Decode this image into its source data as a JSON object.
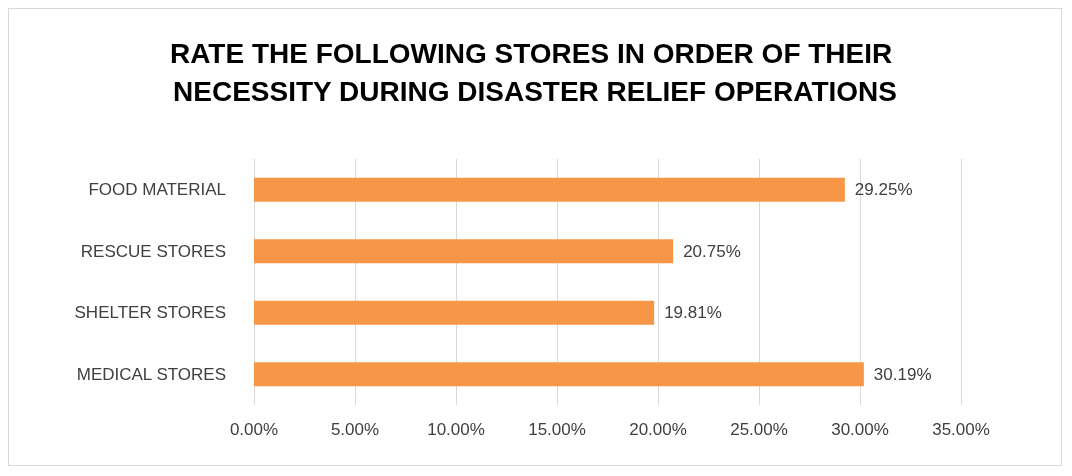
{
  "chart_data": {
    "type": "bar",
    "orientation": "horizontal",
    "title": "RATE THE FOLLOWING STORES IN ORDER OF THEIR NECESSITY DURING DISASTER RELIEF OPERATIONS",
    "categories": [
      "FOOD MATERIAL",
      "RESCUE STORES",
      "SHELTER STORES",
      "MEDICAL STORES"
    ],
    "values": [
      29.25,
      20.75,
      19.81,
      30.19
    ],
    "value_labels": [
      "29.25%",
      "20.75%",
      "19.81%",
      "30.19%"
    ],
    "color": "#f79646",
    "xlim": [
      0,
      35
    ],
    "xticks": [
      {
        "value": 0,
        "label": "0.00%"
      },
      {
        "value": 5,
        "label": "5.00%"
      },
      {
        "value": 10,
        "label": "10.00%"
      },
      {
        "value": 15,
        "label": "15.00%"
      },
      {
        "value": 20,
        "label": "20.00%"
      },
      {
        "value": 25,
        "label": "25.00%"
      },
      {
        "value": 30,
        "label": "30.00%"
      },
      {
        "value": 35,
        "label": "35.00%"
      }
    ],
    "grid": "x"
  }
}
